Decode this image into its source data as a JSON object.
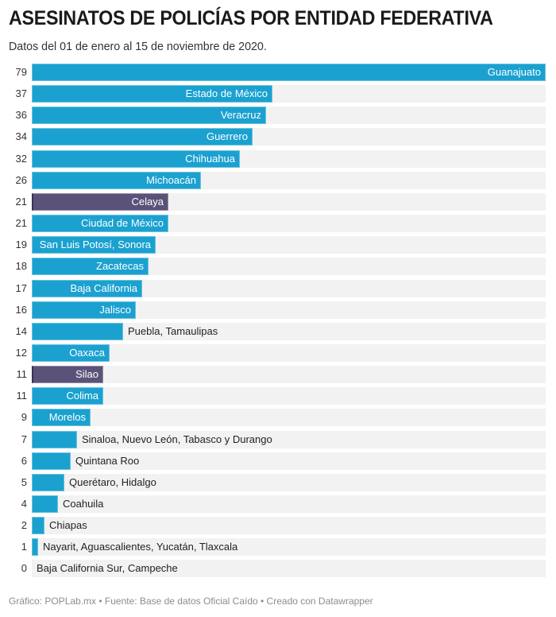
{
  "chart_data": {
    "type": "bar",
    "orientation": "horizontal",
    "title": "ASESINATOS DE POLICÍAS POR ENTIDAD FEDERATIVA",
    "subtitle": "Datos del 01 de enero al 15 de noviembre de 2020.",
    "xlim": [
      0,
      79
    ],
    "grid": false,
    "legend": "none",
    "colors": {
      "default": "#1ba1d0",
      "highlight": "#5b5279",
      "track": "#f2f2f2"
    },
    "rows": [
      {
        "label": "Guanajuato",
        "value": 79,
        "highlight": false
      },
      {
        "label": "Estado de México",
        "value": 37,
        "highlight": false
      },
      {
        "label": "Veracruz",
        "value": 36,
        "highlight": false
      },
      {
        "label": "Guerrero",
        "value": 34,
        "highlight": false
      },
      {
        "label": "Chihuahua",
        "value": 32,
        "highlight": false
      },
      {
        "label": "Michoacán",
        "value": 26,
        "highlight": false
      },
      {
        "label": "Celaya",
        "value": 21,
        "highlight": true
      },
      {
        "label": "Ciudad de México",
        "value": 21,
        "highlight": false
      },
      {
        "label": "San Luis Potosí, Sonora",
        "value": 19,
        "highlight": false
      },
      {
        "label": "Zacatecas",
        "value": 18,
        "highlight": false
      },
      {
        "label": "Baja California",
        "value": 17,
        "highlight": false
      },
      {
        "label": "Jalisco",
        "value": 16,
        "highlight": false
      },
      {
        "label": "Puebla, Tamaulipas",
        "value": 14,
        "highlight": false
      },
      {
        "label": "Oaxaca",
        "value": 12,
        "highlight": false
      },
      {
        "label": "Silao",
        "value": 11,
        "highlight": true
      },
      {
        "label": "Colima",
        "value": 11,
        "highlight": false
      },
      {
        "label": "Morelos",
        "value": 9,
        "highlight": false
      },
      {
        "label": "Sinaloa, Nuevo León, Tabasco y Durango",
        "value": 7,
        "highlight": false
      },
      {
        "label": "Quintana Roo",
        "value": 6,
        "highlight": false
      },
      {
        "label": "Querétaro, Hidalgo",
        "value": 5,
        "highlight": false
      },
      {
        "label": "Coahuila",
        "value": 4,
        "highlight": false
      },
      {
        "label": "Chiapas",
        "value": 2,
        "highlight": false
      },
      {
        "label": "Nayarit, Aguascalientes, Yucatán, Tlaxcala",
        "value": 1,
        "highlight": false
      },
      {
        "label": "Baja California Sur, Campeche",
        "value": 0,
        "highlight": false
      }
    ]
  },
  "footer": "Gráfico: POPLab.mx • Fuente: Base de datos Oficial Caído • Creado con Datawrapper"
}
